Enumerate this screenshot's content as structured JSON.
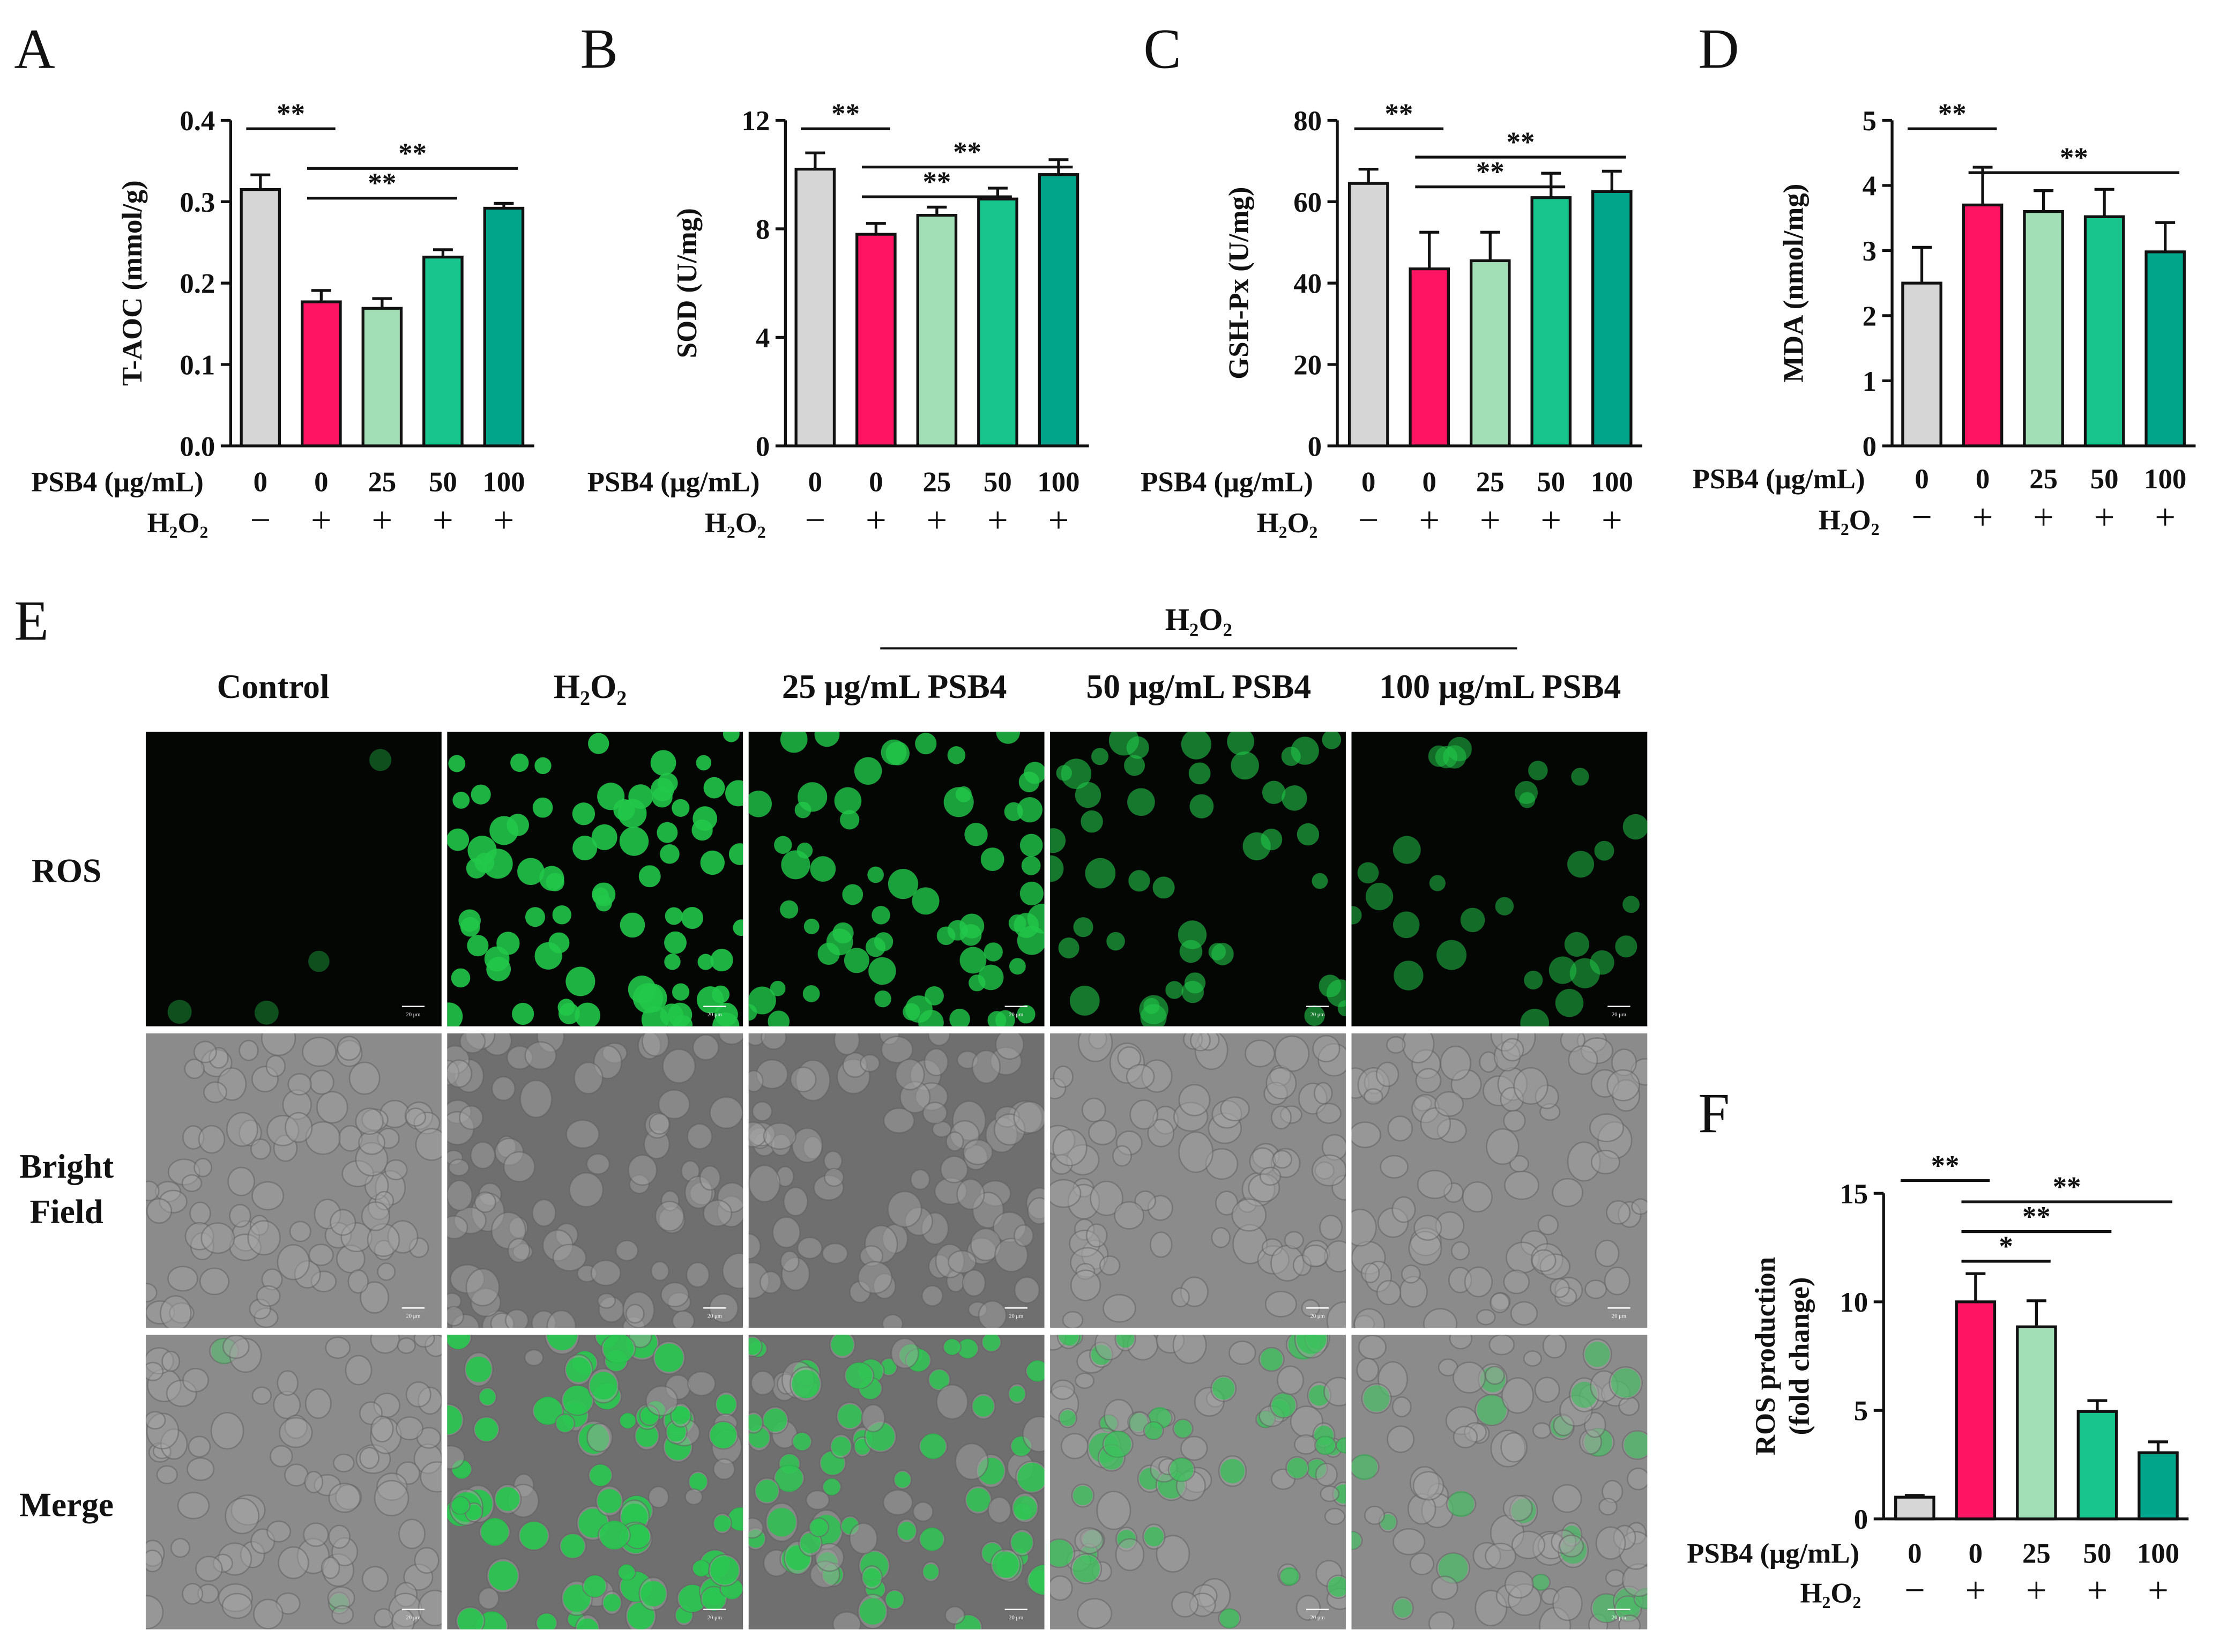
{
  "colors": {
    "control": "#d6d6d6",
    "h2o2": "#ff1464",
    "psb25": "#a3dfb6",
    "psb50": "#18c58c",
    "psb100": "#00a58a",
    "ros_fluor": "#22c84a",
    "bright_field": "#8a8a8a"
  },
  "condition_rows": {
    "psb4_label": "PSB4 (μg/mL)",
    "psb4_values": [
      "0",
      "0",
      "25",
      "50",
      "100"
    ],
    "h2o2_label": "H₂O₂",
    "h2o2_values": [
      "−",
      "+",
      "+",
      "+",
      "+"
    ]
  },
  "chart_data": [
    {
      "panel": "A",
      "type": "bar",
      "ylabel": "T-AOC (mmol/g)",
      "ylim": [
        0,
        0.4
      ],
      "yticks": [
        "0.0",
        "0.1",
        "0.2",
        "0.3",
        "0.4"
      ],
      "values": [
        0.315,
        0.177,
        0.169,
        0.232,
        0.292
      ],
      "errors": [
        0.018,
        0.014,
        0.012,
        0.009,
        0.006
      ],
      "significance": [
        {
          "from": 0,
          "to": 1,
          "label": "**"
        },
        {
          "from": 1,
          "to": 4,
          "label": "**"
        },
        {
          "from": 1,
          "to": 3,
          "label": "**"
        }
      ]
    },
    {
      "panel": "B",
      "type": "bar",
      "ylabel": "SOD (U/mg)",
      "ylim": [
        0,
        12
      ],
      "yticks": [
        "0",
        "4",
        "8",
        "12"
      ],
      "values": [
        10.2,
        7.8,
        8.5,
        9.1,
        10.0
      ],
      "errors": [
        0.6,
        0.4,
        0.3,
        0.4,
        0.55
      ],
      "significance": [
        {
          "from": 0,
          "to": 1,
          "label": "**"
        },
        {
          "from": 1,
          "to": 4,
          "label": "**"
        },
        {
          "from": 1,
          "to": 3,
          "label": "**"
        }
      ]
    },
    {
      "panel": "C",
      "type": "bar",
      "ylabel": "GSH-Px (U/mg)",
      "ylim": [
        0,
        80
      ],
      "yticks": [
        "0",
        "20",
        "40",
        "60",
        "80"
      ],
      "values": [
        64.5,
        43.5,
        45.5,
        61.0,
        62.5
      ],
      "errors": [
        3.5,
        9.0,
        7.0,
        6.0,
        5.0
      ],
      "significance": [
        {
          "from": 0,
          "to": 1,
          "label": "**"
        },
        {
          "from": 1,
          "to": 4,
          "label": "**"
        },
        {
          "from": 1,
          "to": 3,
          "label": "**"
        }
      ]
    },
    {
      "panel": "D",
      "type": "bar",
      "ylabel": "MDA (nmol/mg)",
      "ylim": [
        0,
        5
      ],
      "yticks": [
        "0",
        "1",
        "2",
        "3",
        "4",
        "5"
      ],
      "values": [
        2.5,
        3.7,
        3.6,
        3.52,
        2.98
      ],
      "errors": [
        0.55,
        0.58,
        0.32,
        0.42,
        0.45
      ],
      "significance": [
        {
          "from": 0,
          "to": 1,
          "label": "**"
        },
        {
          "from": 1,
          "to": 4,
          "label": "**"
        }
      ]
    },
    {
      "panel": "F",
      "type": "bar",
      "ylabel": "ROS production (fold change)",
      "ylabel_lines": [
        "ROS production",
        "(fold change)"
      ],
      "ylim": [
        0,
        15
      ],
      "yticks": [
        "0",
        "5",
        "10",
        "15"
      ],
      "values": [
        1.0,
        10.0,
        8.85,
        4.95,
        3.05
      ],
      "errors": [
        0.08,
        1.3,
        1.2,
        0.5,
        0.5
      ],
      "significance": [
        {
          "from": 0,
          "to": 1,
          "label": "**"
        },
        {
          "from": 1,
          "to": 4,
          "label": "**"
        },
        {
          "from": 1,
          "to": 3,
          "label": "**"
        },
        {
          "from": 1,
          "to": 2,
          "label": "*"
        }
      ]
    }
  ],
  "panel_e": {
    "letter": "E",
    "group_label": "H₂O₂",
    "columns": [
      "Control",
      "H₂O₂",
      "25 μg/mL PSB4",
      "50 μg/mL PSB4",
      "100 μg/mL PSB4"
    ],
    "rows": [
      [
        "ROS"
      ],
      [
        "Bright",
        "Field"
      ],
      [
        "Merge"
      ]
    ],
    "scale_bar_labels": [
      "20 μm",
      "20 μm",
      "20 μm",
      "20 μm",
      "20 μm",
      "20 μm",
      "20 μm",
      "20 μm",
      "20 μm",
      "20 μm",
      "20 μm",
      "20 μm",
      "20 μm",
      "20 μm",
      "20 μm"
    ],
    "ros_intensity": [
      0.05,
      0.9,
      0.75,
      0.4,
      0.3
    ],
    "merge_intensity": [
      0.04,
      0.85,
      0.7,
      0.45,
      0.25
    ]
  }
}
